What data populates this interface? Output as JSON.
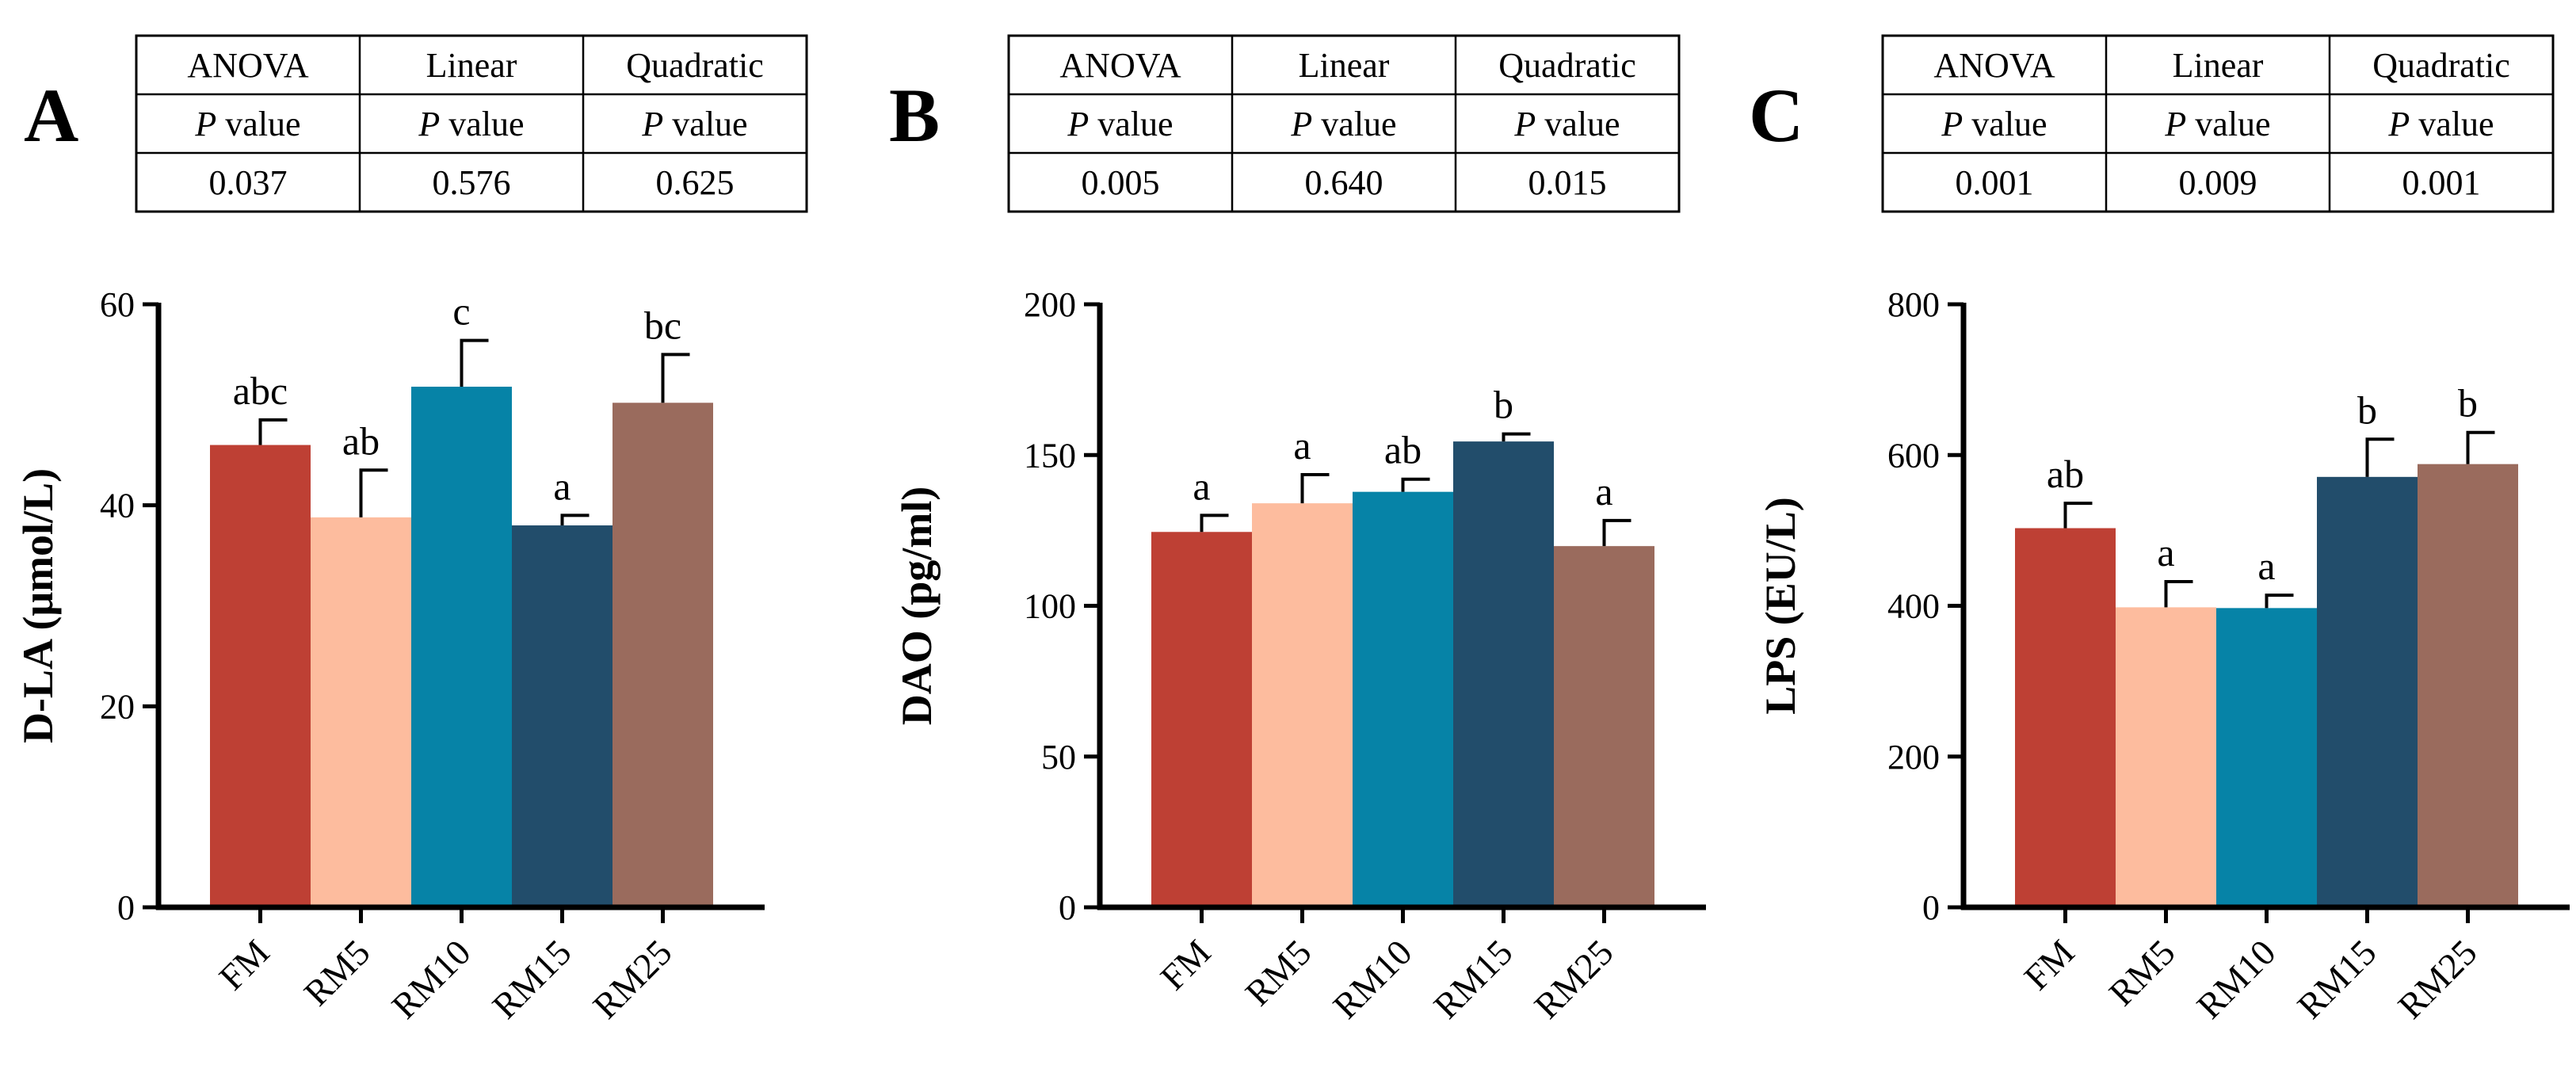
{
  "colors": {
    "FM": "#BE4034",
    "RM5": "#FDBC9E",
    "RM10": "#0683A7",
    "RM15": "#224D6B",
    "RM25": "#9A6B5D"
  },
  "chart_data": [
    {
      "panel_label": "A",
      "type": "bar",
      "table": {
        "header": [
          "ANOVA",
          "Linear",
          "Quadratic"
        ],
        "subheader_italic": "P",
        "subheader_text": " value",
        "values": [
          "0.037",
          "0.576",
          "0.625"
        ]
      },
      "categories": [
        "FM",
        "RM5",
        "RM10",
        "RM15",
        "RM25"
      ],
      "values": [
        46,
        38.8,
        51.8,
        38,
        50.2
      ],
      "errors": [
        2.5,
        4.7,
        4.6,
        1.0,
        4.8
      ],
      "letters": [
        "abc",
        "ab",
        "c",
        "a",
        "bc"
      ],
      "ylabel": "D-LA (μmol/L)",
      "ylim": [
        0,
        60
      ],
      "yticks": [
        0,
        20,
        40,
        60
      ],
      "ytick_labels": [
        "0",
        "20",
        "40",
        "60"
      ]
    },
    {
      "panel_label": "B",
      "type": "bar",
      "table": {
        "header": [
          "ANOVA",
          "Linear",
          "Quadratic"
        ],
        "subheader_italic": "P",
        "subheader_text": " value",
        "values": [
          "0.005",
          "0.640",
          "0.015"
        ]
      },
      "categories": [
        "FM",
        "RM5",
        "RM10",
        "RM15",
        "RM25"
      ],
      "values": [
        124.5,
        134,
        137.8,
        154.5,
        119.8
      ],
      "errors": [
        5.5,
        9.5,
        4.2,
        2.5,
        8.5
      ],
      "letters": [
        "a",
        "a",
        "ab",
        "b",
        "a"
      ],
      "ylabel": "DAO (pg/ml)",
      "ylim": [
        0,
        200
      ],
      "yticks": [
        0,
        50,
        100,
        150,
        200
      ],
      "ytick_labels": [
        "0",
        "50",
        "100",
        "150",
        "200"
      ]
    },
    {
      "panel_label": "C",
      "type": "bar",
      "table": {
        "header": [
          "ANOVA",
          "Linear",
          "Quadratic"
        ],
        "subheader_italic": "P",
        "subheader_text": " value",
        "values": [
          "0.001",
          "0.009",
          "0.001"
        ]
      },
      "categories": [
        "FM",
        "RM5",
        "RM10",
        "RM15",
        "RM25"
      ],
      "values": [
        503,
        398,
        397,
        571,
        588
      ],
      "errors": [
        33,
        34,
        17,
        50,
        42
      ],
      "letters": [
        "ab",
        "a",
        "a",
        "b",
        "b"
      ],
      "ylabel": "LPS (EU/L)",
      "ylim": [
        0,
        800
      ],
      "yticks": [
        0,
        200,
        400,
        600,
        800
      ],
      "ytick_labels": [
        "0",
        "200",
        "400",
        "600",
        "800"
      ]
    }
  ]
}
